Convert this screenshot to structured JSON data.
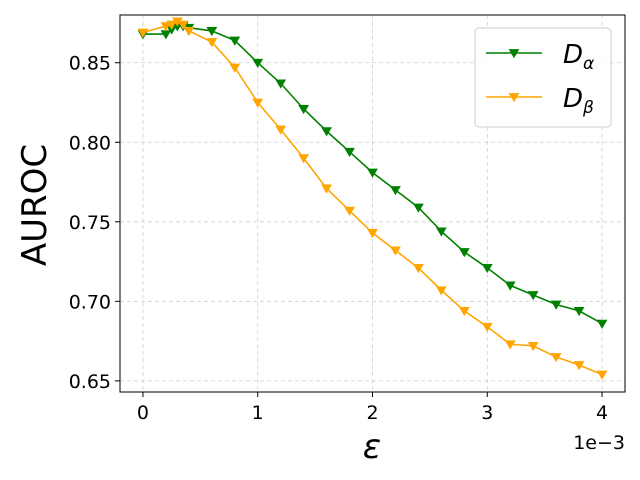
{
  "chart_data": {
    "type": "line",
    "xlabel": "ε",
    "ylabel": "AUROC",
    "x_offset_label": "1e−3",
    "xlim": [
      -0.2,
      4.2
    ],
    "ylim": [
      0.643,
      0.88
    ],
    "xticks": [
      0,
      1,
      2,
      3,
      4
    ],
    "xtick_labels": [
      "0",
      "1",
      "2",
      "3",
      "4"
    ],
    "yticks": [
      0.65,
      0.7,
      0.75,
      0.8,
      0.85
    ],
    "ytick_labels": [
      "0.65",
      "0.70",
      "0.75",
      "0.80",
      "0.85"
    ],
    "grid": true,
    "legend_position": "top-right",
    "x_scale_note": "x values in units of 1e-3",
    "series": [
      {
        "name": "D",
        "subscript": "α",
        "color": "#008000",
        "marker": "triangle-down",
        "x": [
          0,
          0.2,
          0.25,
          0.3,
          0.35,
          0.4,
          0.6,
          0.8,
          1.0,
          1.2,
          1.4,
          1.6,
          1.8,
          2.0,
          2.2,
          2.4,
          2.6,
          2.8,
          3.0,
          3.2,
          3.4,
          3.6,
          3.8,
          4.0
        ],
        "y": [
          0.868,
          0.868,
          0.871,
          0.873,
          0.873,
          0.872,
          0.87,
          0.864,
          0.85,
          0.837,
          0.821,
          0.807,
          0.794,
          0.781,
          0.77,
          0.759,
          0.744,
          0.731,
          0.721,
          0.71,
          0.704,
          0.698,
          0.694,
          0.686
        ]
      },
      {
        "name": "D",
        "subscript": "β",
        "color": "#FFA500",
        "marker": "triangle-down",
        "x": [
          0,
          0.2,
          0.25,
          0.3,
          0.35,
          0.4,
          0.6,
          0.8,
          1.0,
          1.2,
          1.4,
          1.6,
          1.8,
          2.0,
          2.2,
          2.4,
          2.6,
          2.8,
          3.0,
          3.2,
          3.4,
          3.6,
          3.8,
          4.0
        ],
        "y": [
          0.869,
          0.873,
          0.874,
          0.876,
          0.874,
          0.87,
          0.863,
          0.847,
          0.825,
          0.808,
          0.79,
          0.771,
          0.757,
          0.743,
          0.732,
          0.721,
          0.707,
          0.694,
          0.684,
          0.673,
          0.672,
          0.665,
          0.66,
          0.654
        ]
      }
    ]
  }
}
